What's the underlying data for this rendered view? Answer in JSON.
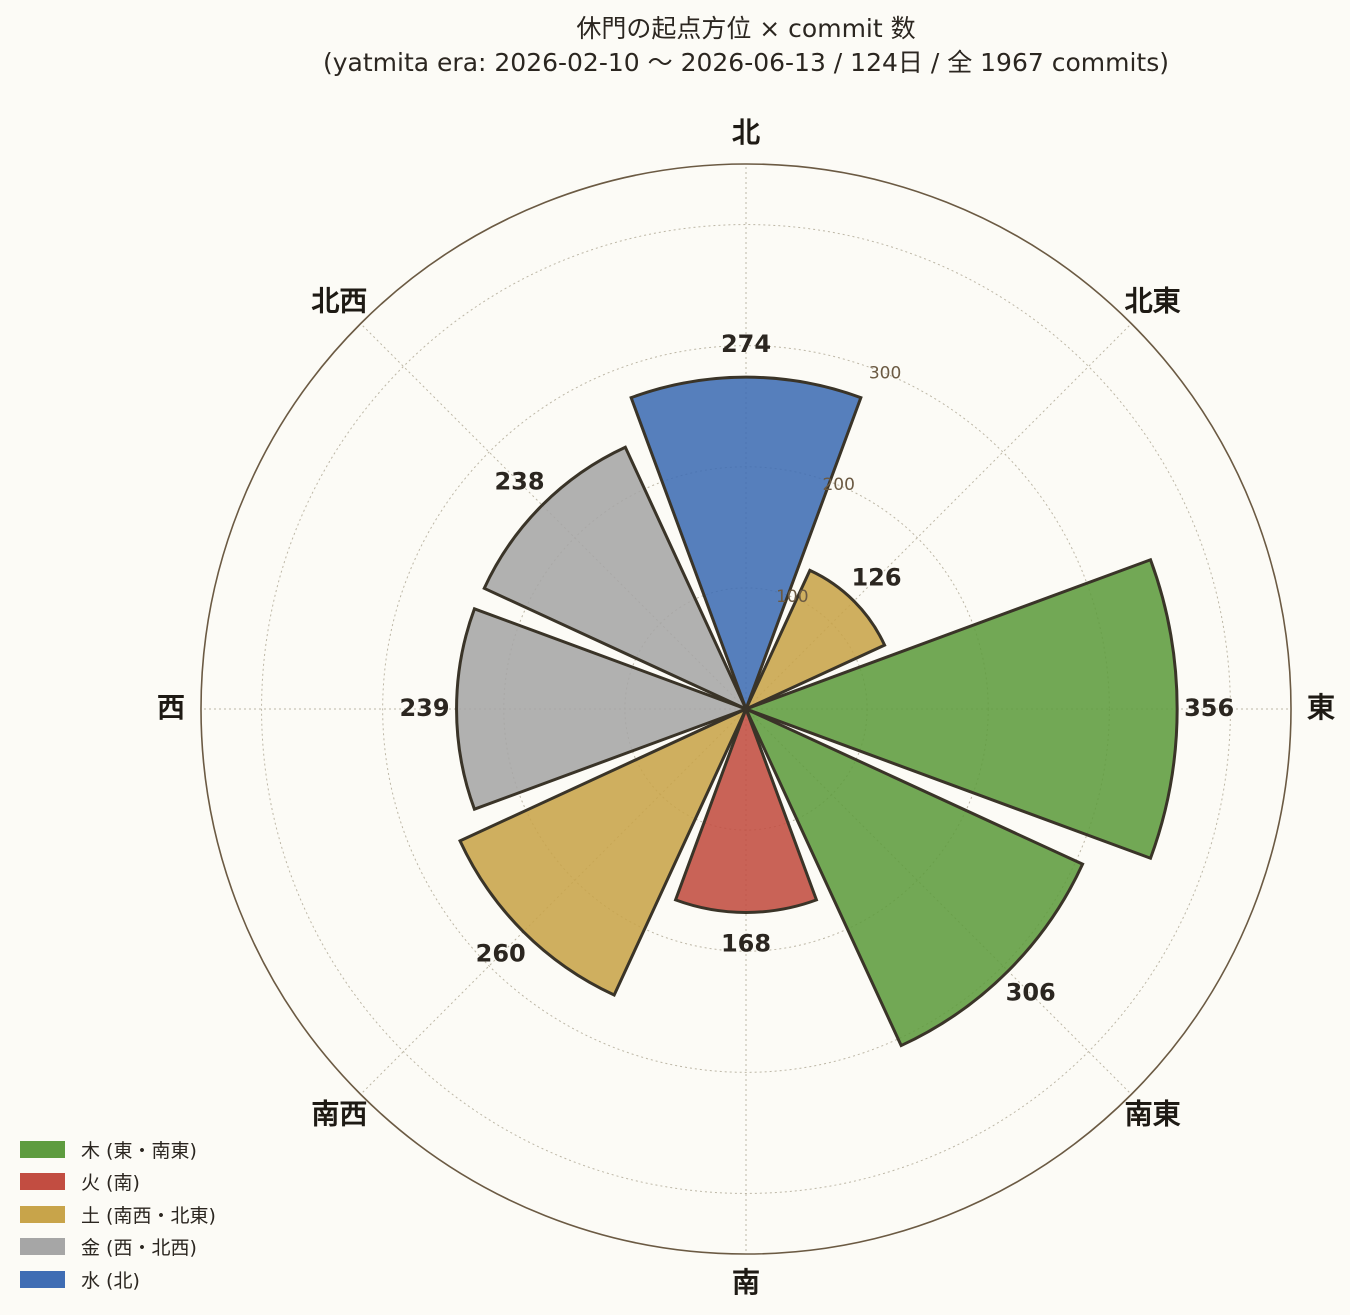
{
  "chart_data": {
    "type": "polar-bar",
    "title": "休門の起点方位 × commit 数",
    "subtitle": "(yatmita era: 2026-02-10 〜 2026-06-13 / 124日 / 全 1967 commits)",
    "direction_labels": [
      "北",
      "北東",
      "東",
      "南東",
      "南",
      "南西",
      "西",
      "北西"
    ],
    "r_ticks": [
      100,
      200,
      300
    ],
    "r_max": 450,
    "series": [
      {
        "direction": "北",
        "value": 274,
        "element": "水",
        "color": "#3f6db4"
      },
      {
        "direction": "北東",
        "value": 126,
        "element": "土",
        "color": "#c8a44a"
      },
      {
        "direction": "東",
        "value": 356,
        "element": "木",
        "color": "#5e9c3f"
      },
      {
        "direction": "南東",
        "value": 306,
        "element": "木",
        "color": "#5e9c3f"
      },
      {
        "direction": "南",
        "value": 168,
        "element": "火",
        "color": "#c24d41"
      },
      {
        "direction": "南西",
        "value": 260,
        "element": "土",
        "color": "#c8a44a"
      },
      {
        "direction": "西",
        "value": 239,
        "element": "金",
        "color": "#a6a6a6"
      },
      {
        "direction": "北西",
        "value": 238,
        "element": "金",
        "color": "#a6a6a6"
      }
    ],
    "legend": [
      {
        "label": "木 (東・南東)",
        "color": "#5e9c3f"
      },
      {
        "label": "火 (南)",
        "color": "#c24d41"
      },
      {
        "label": "土 (南西・北東)",
        "color": "#c8a44a"
      },
      {
        "label": "金 (西・北西)",
        "color": "#a6a6a6"
      },
      {
        "label": "水 (北)",
        "color": "#3f6db4"
      }
    ],
    "legend_position": "bottom-left",
    "grid": true
  }
}
